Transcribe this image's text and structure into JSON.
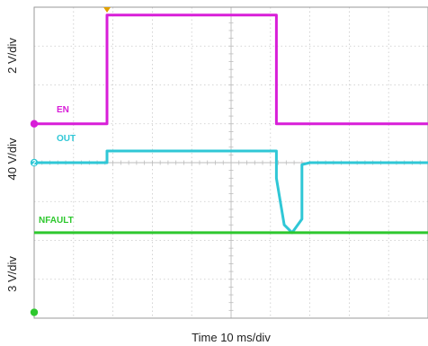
{
  "chart_data": {
    "type": "line",
    "xlabel": "Time 10 ms/div",
    "grid": {
      "x_divisions": 10,
      "y_divisions": 8,
      "subdivisions": 5
    },
    "ylim": [
      0,
      8
    ],
    "xlim": [
      0,
      10
    ],
    "channel_scales": [
      "2 V/div",
      "40 V/div",
      "3 V/div"
    ],
    "series": [
      {
        "name": "EN",
        "color": "#d81ed8",
        "points": [
          [
            0,
            5.0
          ],
          [
            1.85,
            5.0
          ],
          [
            1.85,
            7.8
          ],
          [
            6.15,
            7.8
          ],
          [
            6.15,
            5.0
          ],
          [
            10,
            5.0
          ]
        ]
      },
      {
        "name": "OUT",
        "color": "#2fc7d6",
        "points": [
          [
            0,
            4.0
          ],
          [
            1.85,
            4.0
          ],
          [
            1.85,
            4.3
          ],
          [
            6.15,
            4.3
          ],
          [
            6.15,
            3.6
          ],
          [
            6.35,
            2.4
          ],
          [
            6.55,
            2.2
          ],
          [
            6.8,
            2.55
          ],
          [
            6.8,
            3.95
          ],
          [
            7.0,
            4.0
          ],
          [
            10,
            4.0
          ]
        ]
      },
      {
        "name": "NFAULT",
        "color": "#2ec82e",
        "points": [
          [
            0,
            2.2
          ],
          [
            10,
            2.2
          ]
        ]
      }
    ],
    "markers": [
      {
        "label": "",
        "color": "#d81ed8",
        "level": 5.0
      },
      {
        "label": "2",
        "color": "#2fc7d6",
        "level": 4.0
      },
      {
        "label": "",
        "color": "#2ec82e",
        "level": 0.15
      }
    ],
    "trigger_color": "#e0a000",
    "trigger_x": 1.85
  }
}
